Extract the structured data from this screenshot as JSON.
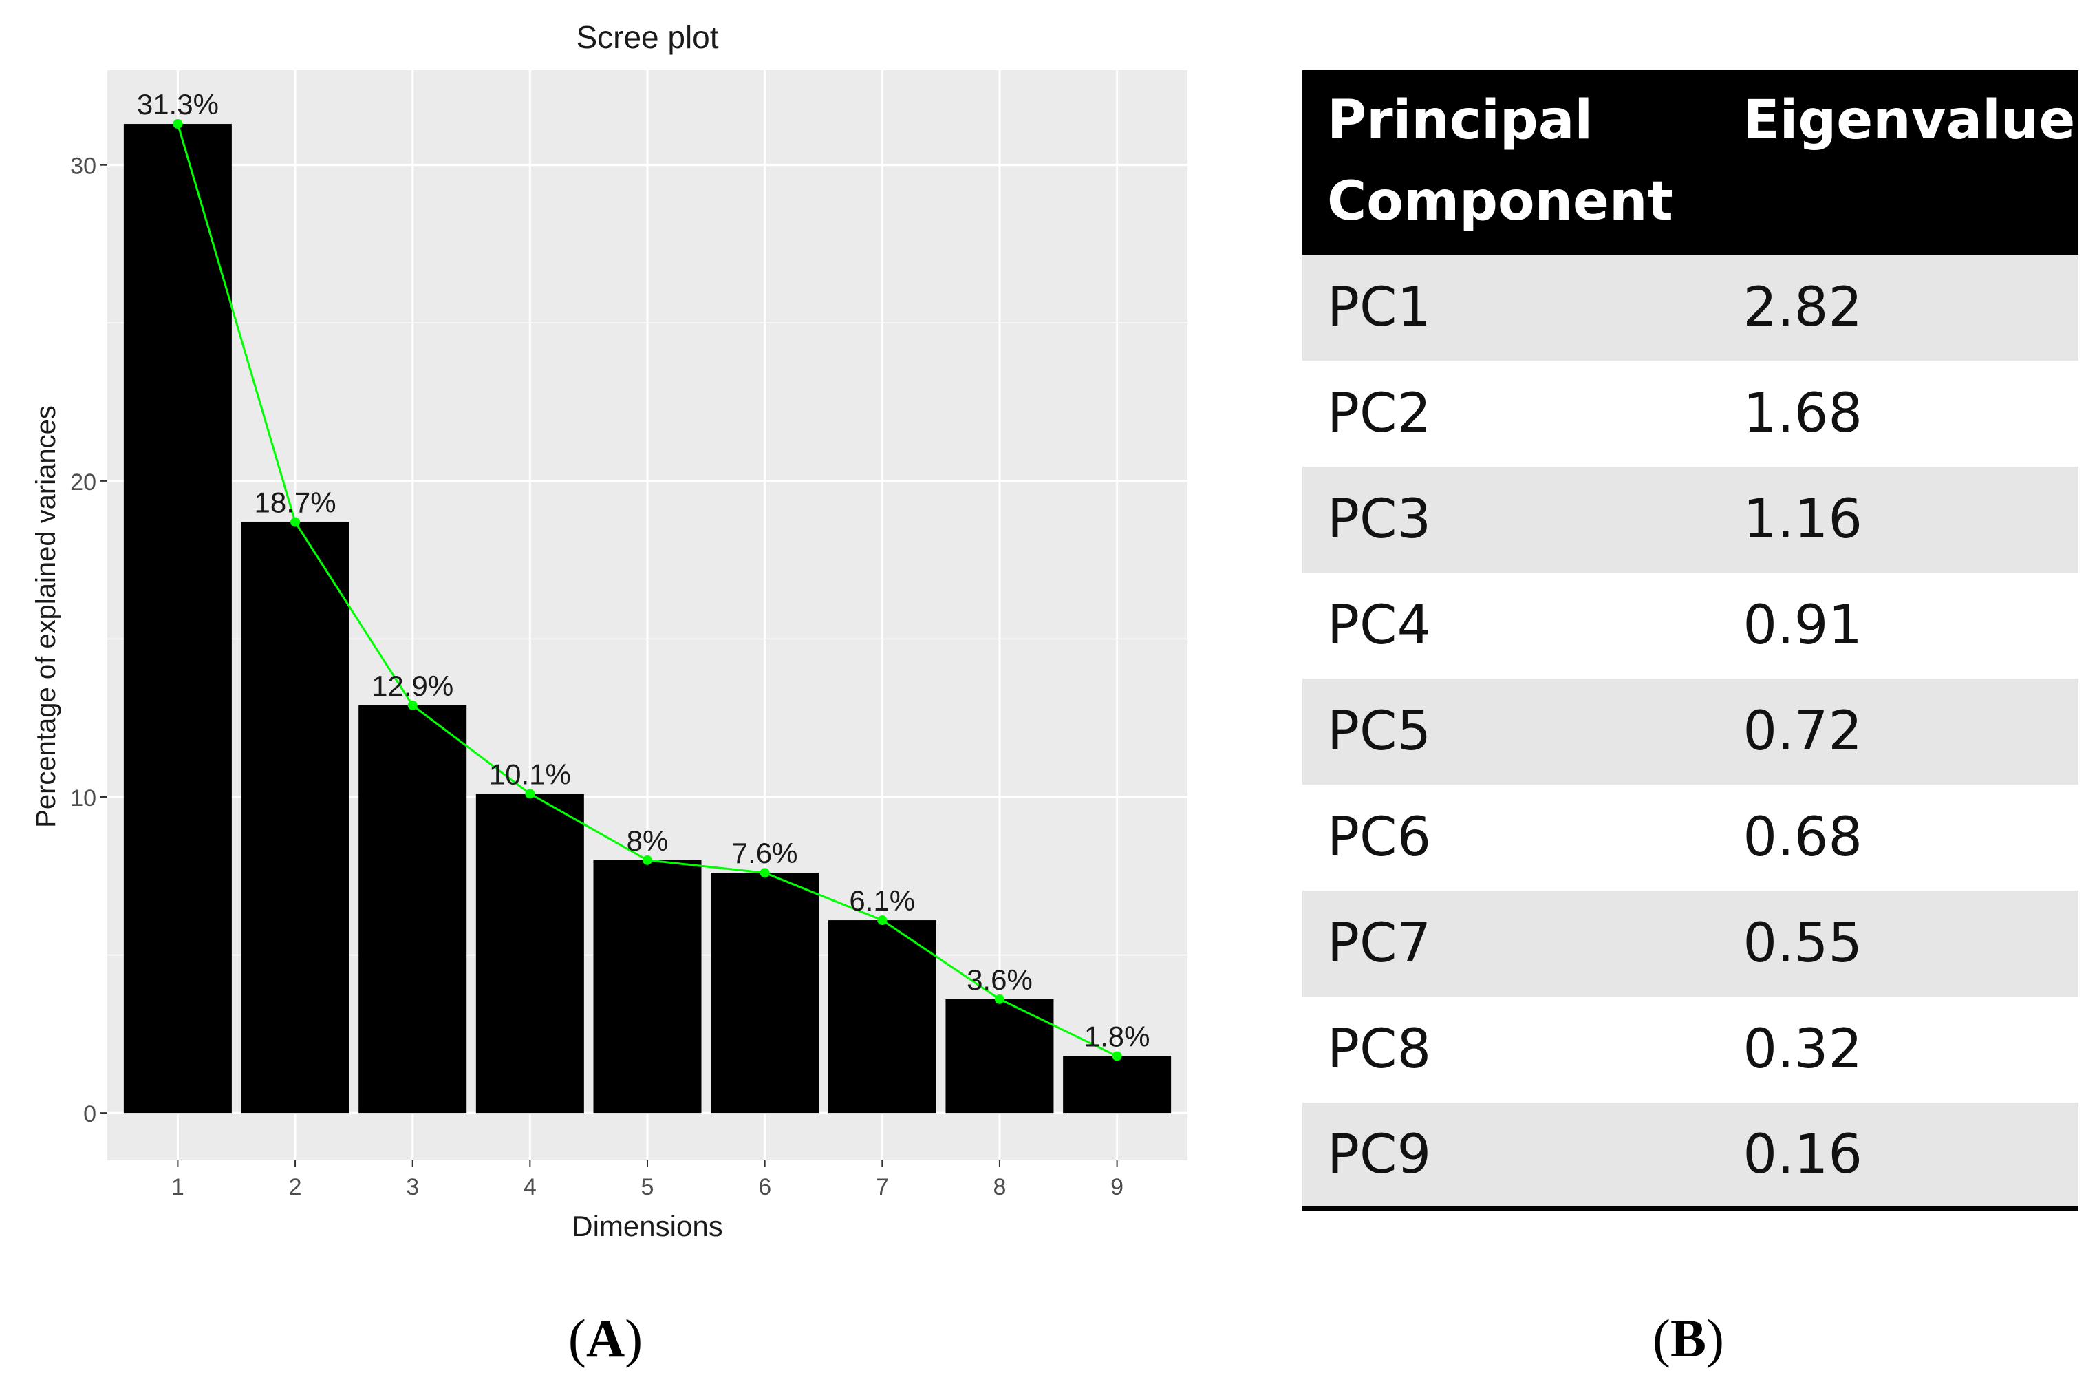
{
  "panels": {
    "a_label": "A",
    "b_label": "B"
  },
  "chart_data": {
    "type": "bar",
    "title": "Scree plot",
    "xlabel": "Dimensions",
    "ylabel": "Percentage of explained variances",
    "categories": [
      "1",
      "2",
      "3",
      "4",
      "5",
      "6",
      "7",
      "8",
      "9"
    ],
    "values": [
      31.3,
      18.7,
      12.9,
      10.1,
      8.0,
      7.6,
      6.1,
      3.6,
      1.8
    ],
    "data_labels": [
      "31.3%",
      "18.7%",
      "12.9%",
      "10.1%",
      "8%",
      "7.6%",
      "6.1%",
      "3.6%",
      "1.8%"
    ],
    "yticks": [
      0,
      10,
      20,
      30
    ],
    "ylim": [
      -1.5,
      33
    ],
    "grid": true,
    "bar_color": "#000000",
    "line_color": "#00ff00",
    "panel_background": "#ebebeb",
    "grid_color": "#ffffff"
  },
  "table": {
    "headers": [
      "Principal Component",
      "Eigenvalue"
    ],
    "rows": [
      [
        "PC1",
        "2.82"
      ],
      [
        "PC2",
        "1.68"
      ],
      [
        "PC3",
        "1.16"
      ],
      [
        "PC4",
        "0.91"
      ],
      [
        "PC5",
        "0.72"
      ],
      [
        "PC6",
        "0.68"
      ],
      [
        "PC7",
        "0.55"
      ],
      [
        "PC8",
        "0.32"
      ],
      [
        "PC9",
        "0.16"
      ]
    ]
  }
}
